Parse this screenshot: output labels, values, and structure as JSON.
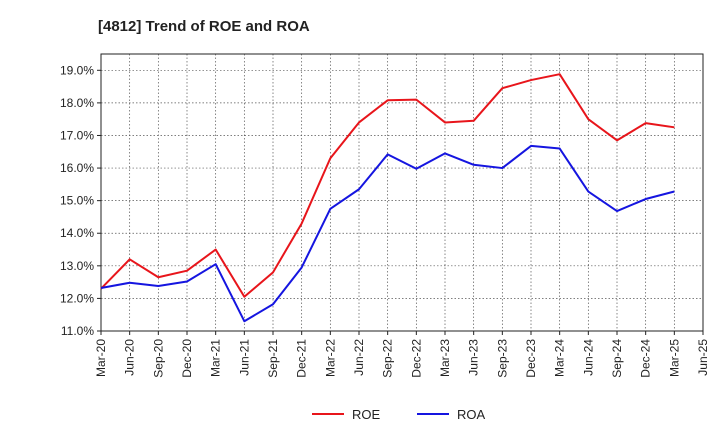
{
  "chart_data": {
    "type": "line",
    "title": "[4812]  Trend of ROE and ROA",
    "xlabel": "",
    "ylabel": "",
    "categories": [
      "Mar-20",
      "Jun-20",
      "Sep-20",
      "Dec-20",
      "Mar-21",
      "Jun-21",
      "Sep-21",
      "Dec-21",
      "Mar-22",
      "Jun-22",
      "Sep-22",
      "Dec-22",
      "Mar-23",
      "Jun-23",
      "Sep-23",
      "Dec-23",
      "Mar-24",
      "Jun-24",
      "Sep-24",
      "Dec-24",
      "Mar-25",
      "Jun-25"
    ],
    "y_ticks": [
      "11.0%",
      "12.0%",
      "13.0%",
      "14.0%",
      "15.0%",
      "16.0%",
      "17.0%",
      "18.0%",
      "19.0%"
    ],
    "ylim": [
      11.0,
      19.5
    ],
    "grid": true,
    "legend_position": "bottom-center",
    "series": [
      {
        "name": "ROE",
        "color": "#e8151b",
        "values": [
          12.3,
          13.2,
          12.65,
          12.85,
          13.5,
          12.05,
          12.8,
          14.3,
          16.3,
          17.4,
          18.08,
          18.1,
          17.4,
          17.45,
          18.45,
          18.7,
          18.88,
          17.5,
          16.85,
          17.38,
          17.25,
          null
        ]
      },
      {
        "name": "ROA",
        "color": "#1515e0",
        "values": [
          12.32,
          12.48,
          12.38,
          12.52,
          13.05,
          11.3,
          11.82,
          12.95,
          14.75,
          15.35,
          16.42,
          15.98,
          16.45,
          16.1,
          16.0,
          16.68,
          16.6,
          15.28,
          14.68,
          15.05,
          15.28,
          null
        ]
      }
    ]
  }
}
